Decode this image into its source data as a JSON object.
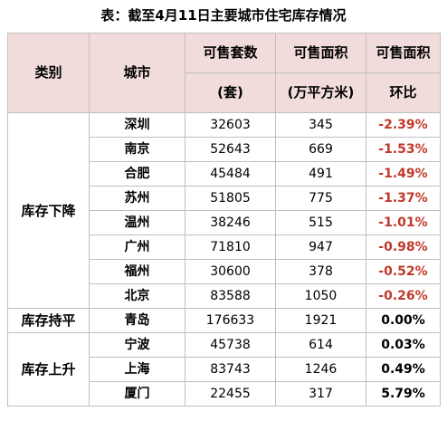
{
  "title": "表：截至4月11日主要城市住宅库存情况",
  "headers": {
    "category": "类别",
    "city": "城市",
    "units_line1": "可售套数",
    "units_line2": "(套)",
    "area_line1": "可售面积",
    "area_line2": "(万平方米)",
    "mom_line1": "可售面积",
    "mom_line2": "环比"
  },
  "groups": [
    {
      "category": "库存下降",
      "rows": [
        {
          "city": "深圳",
          "units": "32603",
          "area": "345",
          "mom": "-2.39%"
        },
        {
          "city": "南京",
          "units": "52643",
          "area": "669",
          "mom": "-1.53%"
        },
        {
          "city": "合肥",
          "units": "45484",
          "area": "491",
          "mom": "-1.49%"
        },
        {
          "city": "苏州",
          "units": "51805",
          "area": "775",
          "mom": "-1.37%"
        },
        {
          "city": "温州",
          "units": "38246",
          "area": "515",
          "mom": "-1.01%"
        },
        {
          "city": "广州",
          "units": "71810",
          "area": "947",
          "mom": "-0.98%"
        },
        {
          "city": "福州",
          "units": "30600",
          "area": "378",
          "mom": "-0.52%"
        },
        {
          "city": "北京",
          "units": "83588",
          "area": "1050",
          "mom": "-0.26%"
        }
      ]
    },
    {
      "category": "库存持平",
      "rows": [
        {
          "city": "青岛",
          "units": "176633",
          "area": "1921",
          "mom": "0.00%"
        }
      ]
    },
    {
      "category": "库存上升",
      "rows": [
        {
          "city": "宁波",
          "units": "45738",
          "area": "614",
          "mom": "0.03%"
        },
        {
          "city": "上海",
          "units": "83743",
          "area": "1246",
          "mom": "0.49%"
        },
        {
          "city": "厦门",
          "units": "22455",
          "area": "317",
          "mom": "5.79%"
        }
      ]
    }
  ],
  "colors": {
    "header_bg": "#f2dcdb",
    "border": "#bfbfbf",
    "negative": "#c0392b"
  }
}
